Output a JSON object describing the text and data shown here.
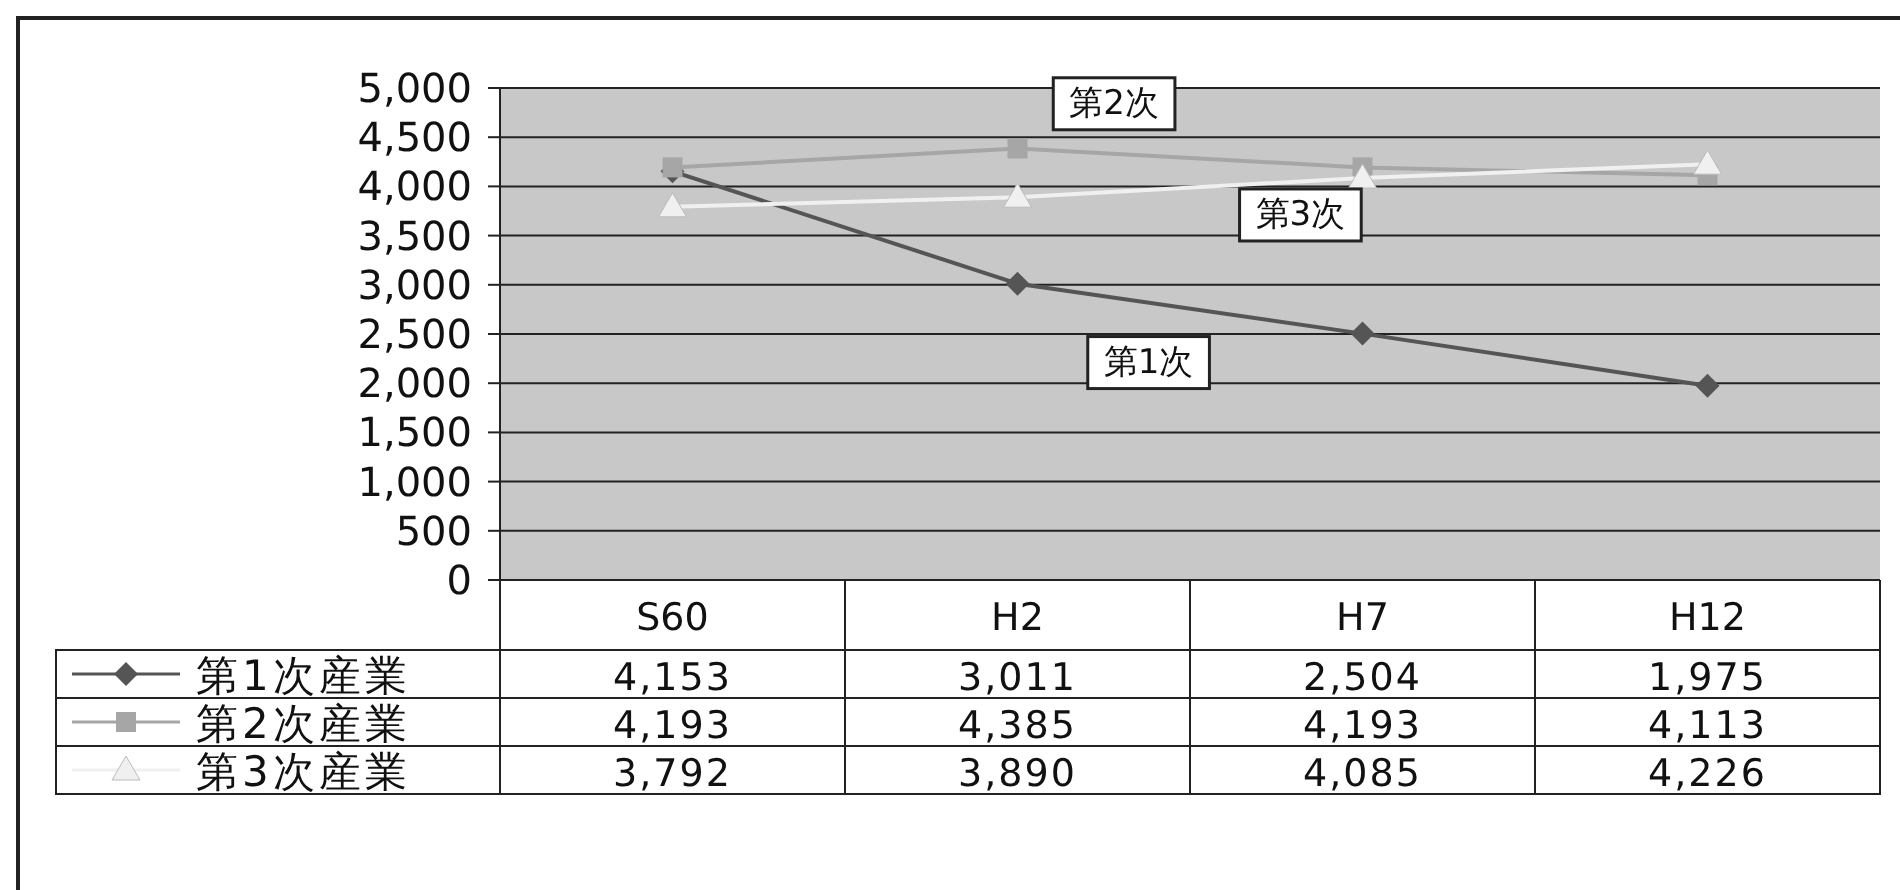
{
  "chart_data": {
    "type": "line",
    "categories": [
      "S60",
      "H2",
      "H7",
      "H12"
    ],
    "series": [
      {
        "name": "第1次産業",
        "color": "#555555",
        "marker": "diamond",
        "values": [
          4153,
          3011,
          2504,
          1975
        ],
        "value_labels": [
          "4,153",
          "3,011",
          "2,504",
          "1,975"
        ]
      },
      {
        "name": "第2次産業",
        "color": "#a6a6a6",
        "marker": "square",
        "values": [
          4193,
          4385,
          4193,
          4113
        ],
        "value_labels": [
          "4,193",
          "4,385",
          "4,193",
          "4,113"
        ]
      },
      {
        "name": "第3次産業",
        "color": "#f0f0f0",
        "marker": "triangle",
        "values": [
          3792,
          3890,
          4085,
          4226
        ],
        "value_labels": [
          "3,792",
          "3,890",
          "4,085",
          "4,226"
        ]
      }
    ],
    "ylim": [
      0,
      5000
    ],
    "yticks": [
      {
        "value": 0,
        "label": "0"
      },
      {
        "value": 500,
        "label": "500"
      },
      {
        "value": 1000,
        "label": "1,000"
      },
      {
        "value": 1500,
        "label": "1,500"
      },
      {
        "value": 2000,
        "label": "2,000"
      },
      {
        "value": 2500,
        "label": "2,500"
      },
      {
        "value": 3000,
        "label": "3,000"
      },
      {
        "value": 3500,
        "label": "3,500"
      },
      {
        "value": 4000,
        "label": "4,000"
      },
      {
        "value": 4500,
        "label": "4,500"
      },
      {
        "value": 5000,
        "label": "5,000"
      }
    ],
    "grid": "y",
    "legend": "bottom left",
    "annotations": [
      "第2次",
      "第3次",
      "第1次"
    ]
  }
}
